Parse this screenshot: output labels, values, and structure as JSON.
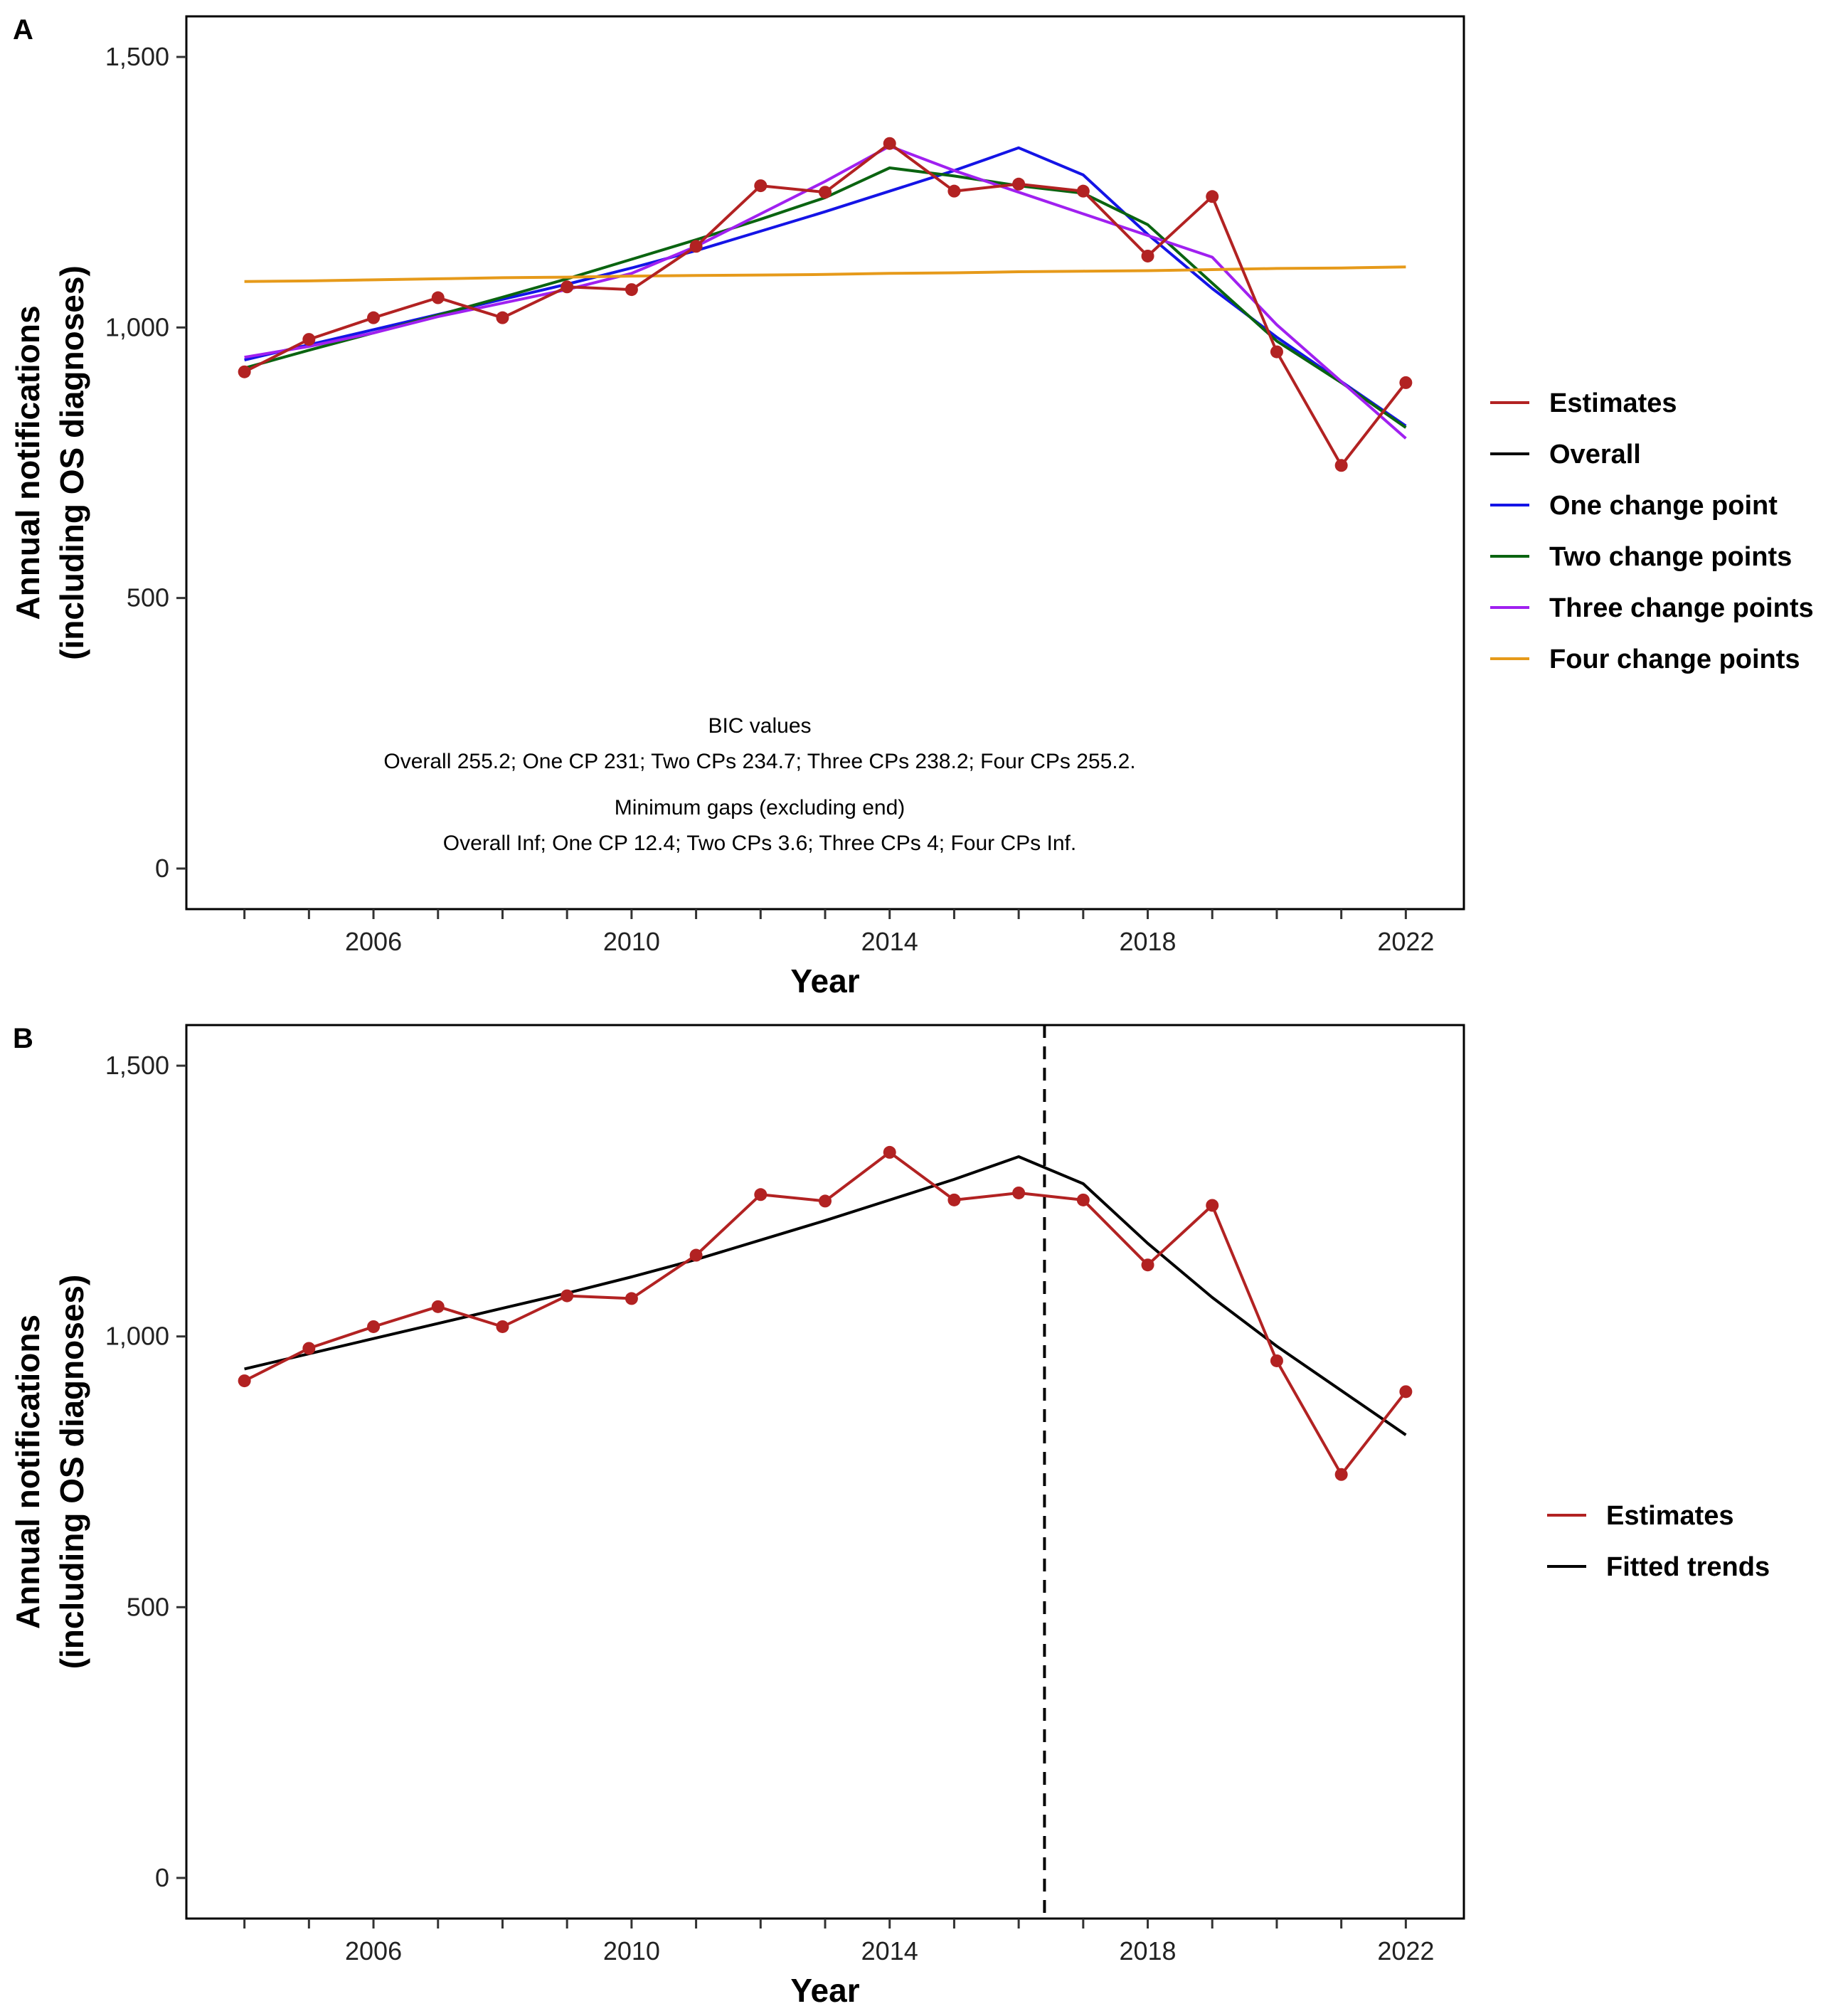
{
  "chart_data": [
    {
      "panel_label": "A",
      "type": "line",
      "xlabel": "Year",
      "ylabel_lines": [
        "Annual notifications",
        "(including OS diagnoses)"
      ],
      "xlim": [
        2003.1,
        2022.9
      ],
      "ylim": [
        -75,
        1575
      ],
      "xticks": [
        2006,
        2010,
        2014,
        2018,
        2022
      ],
      "yticks": [
        0,
        500,
        1000,
        1500
      ],
      "ytick_labels": [
        "0",
        "500",
        "1,000",
        "1,500"
      ],
      "x": [
        2004,
        2005,
        2006,
        2007,
        2008,
        2009,
        2010,
        2011,
        2012,
        2013,
        2014,
        2015,
        2016,
        2017,
        2018,
        2019,
        2020,
        2021,
        2022
      ],
      "series": [
        {
          "name": "Estimates",
          "color": "#B22222",
          "markers": true,
          "values": [
            918,
            978,
            1018,
            1055,
            1018,
            1075,
            1070,
            1150,
            1262,
            1250,
            1340,
            1252,
            1265,
            1252,
            1132,
            1242,
            955,
            745,
            898
          ]
        },
        {
          "name": "Overall",
          "color": "#000000",
          "markers": false,
          "values": [
            null,
            null,
            null,
            null,
            null,
            null,
            null,
            null,
            null,
            null,
            null,
            null,
            null,
            null,
            null,
            null,
            null,
            null,
            null
          ]
        },
        {
          "name": "One change point",
          "color": "#1414E6",
          "markers": false,
          "values": [
            940,
            968,
            996,
            1024,
            1052,
            1080,
            1110,
            1142,
            1178,
            1214,
            1252,
            1290,
            1332,
            1282,
            1172,
            1072,
            982,
            900,
            818
          ]
        },
        {
          "name": "Two change points",
          "color": "#0A6410",
          "markers": false,
          "values": [
            925,
            958,
            990,
            1023,
            1056,
            1090,
            1126,
            1162,
            1200,
            1240,
            1295,
            1280,
            1262,
            1248,
            1190,
            1082,
            975,
            898,
            815
          ]
        },
        {
          "name": "Three change points",
          "color": "#A020F0",
          "markers": false,
          "values": [
            945,
            965,
            990,
            1020,
            1045,
            1070,
            1100,
            1150,
            1210,
            1270,
            1335,
            1290,
            1250,
            1210,
            1170,
            1130,
            1005,
            900,
            795
          ]
        },
        {
          "name": "Four change points",
          "color": "#E69A1A",
          "markers": false,
          "values": [
            1085,
            1086,
            1088,
            1090,
            1092,
            1093,
            1095,
            1096,
            1097,
            1098,
            1100,
            1101,
            1103,
            1104,
            1105,
            1107,
            1109,
            1110,
            1112
          ]
        }
      ],
      "legend_position": "right",
      "annotations": [
        "BIC values",
        "Overall 255.2; One CP 231; Two CPs 234.7; Three CPs 238.2; Four CPs 255.2.",
        "Minimum gaps (excluding end)",
        "Overall Inf; One CP 12.4; Two CPs 3.6; Three CPs 4; Four CPs Inf."
      ]
    },
    {
      "panel_label": "B",
      "type": "line",
      "xlabel": "Year",
      "ylabel_lines": [
        "Annual notifications",
        "(including OS diagnoses)"
      ],
      "xlim": [
        2003.1,
        2022.9
      ],
      "ylim": [
        -75,
        1575
      ],
      "xticks": [
        2006,
        2010,
        2014,
        2018,
        2022
      ],
      "yticks": [
        0,
        500,
        1000,
        1500
      ],
      "ytick_labels": [
        "0",
        "500",
        "1,000",
        "1,500"
      ],
      "x": [
        2004,
        2005,
        2006,
        2007,
        2008,
        2009,
        2010,
        2011,
        2012,
        2013,
        2014,
        2015,
        2016,
        2017,
        2018,
        2019,
        2020,
        2021,
        2022
      ],
      "series": [
        {
          "name": "Estimates",
          "color": "#B22222",
          "markers": true,
          "values": [
            918,
            978,
            1018,
            1055,
            1018,
            1075,
            1070,
            1150,
            1262,
            1250,
            1340,
            1252,
            1265,
            1252,
            1132,
            1242,
            955,
            745,
            898
          ]
        },
        {
          "name": "Fitted trends",
          "color": "#000000",
          "markers": false,
          "values": [
            940,
            968,
            996,
            1024,
            1052,
            1080,
            1110,
            1142,
            1178,
            1214,
            1252,
            1290,
            1332,
            1282,
            1172,
            1072,
            982,
            900,
            818
          ]
        }
      ],
      "vline_x": 2016.4,
      "vline_style": "dashed",
      "legend_position": "right"
    }
  ]
}
